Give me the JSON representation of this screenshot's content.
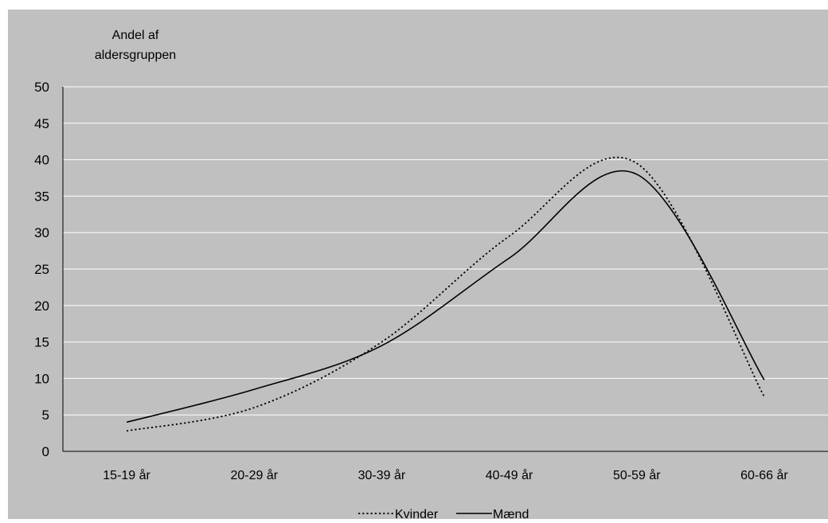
{
  "chart_data": {
    "type": "line",
    "title": "",
    "ylabel_lines": [
      "Andel af",
      "aldersgruppen"
    ],
    "xlabel": "",
    "categories": [
      "15-19 år",
      "20-29 år",
      "30-39 år",
      "40-49 år",
      "50-59 år",
      "60-66 år"
    ],
    "ylim": [
      0,
      50
    ],
    "yticks": [
      0,
      5,
      10,
      15,
      20,
      25,
      30,
      35,
      40,
      45,
      50
    ],
    "grid": true,
    "legend_position": "bottom",
    "series": [
      {
        "name": "Kvinder",
        "style": "dotted",
        "color": "#000000",
        "values": [
          2.8,
          6.0,
          15.0,
          29.5,
          39.5,
          7.5
        ]
      },
      {
        "name": "Mænd",
        "style": "solid",
        "color": "#000000",
        "values": [
          4.0,
          8.5,
          14.5,
          26.5,
          38.0,
          9.8
        ]
      }
    ]
  },
  "colors": {
    "plot_background": "#c0c0c0",
    "gridline": "#ffffff",
    "axis": "#000000"
  }
}
